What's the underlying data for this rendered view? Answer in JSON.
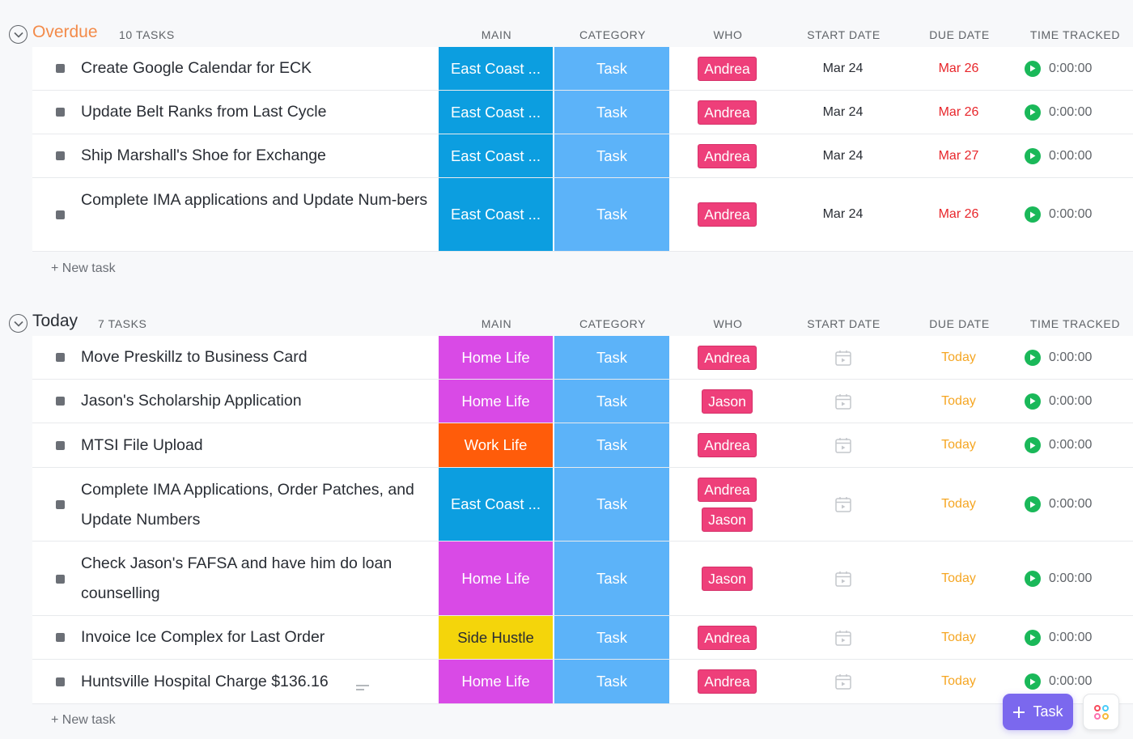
{
  "columns": {
    "main": "MAIN",
    "category": "CATEGORY",
    "who": "WHO",
    "start_date": "START DATE",
    "due_date": "DUE DATE",
    "time_tracked": "TIME TRACKED"
  },
  "colors": {
    "overdue_title": "#f38b4a",
    "overdue_due": "#e8262b",
    "today_due": "#f5a623",
    "east_coast": "#0c9ee0",
    "home_life": "#d94ae6",
    "work_life": "#ff5c0a",
    "side_hustle": "#f4d50b",
    "category_task": "#5cb3f9",
    "who_tag": "#ee3f7a",
    "timer_play": "#1ab859",
    "fab": "#7b68ee"
  },
  "groups": {
    "overdue": {
      "title": "Overdue",
      "count": "10 TASKS",
      "new_task": "+ New task",
      "tasks": [
        {
          "name": "Create Google Calendar for ECK",
          "main": "East Coast ...",
          "category": "Task",
          "who": [
            "Andrea"
          ],
          "start": "Mar 24",
          "due": "Mar 26",
          "time": "0:00:00"
        },
        {
          "name": "Update Belt Ranks from Last Cycle",
          "main": "East Coast ...",
          "category": "Task",
          "who": [
            "Andrea"
          ],
          "start": "Mar 24",
          "due": "Mar 26",
          "time": "0:00:00"
        },
        {
          "name": "Ship Marshall's Shoe for Exchange",
          "main": "East Coast ...",
          "category": "Task",
          "who": [
            "Andrea"
          ],
          "start": "Mar 24",
          "due": "Mar 27",
          "time": "0:00:00"
        },
        {
          "name": "Complete IMA applications and Update Num-bers",
          "main": "East Coast ...",
          "category": "Task",
          "who": [
            "Andrea"
          ],
          "start": "Mar 24",
          "due": "Mar 26",
          "time": "0:00:00"
        }
      ]
    },
    "today": {
      "title": "Today",
      "count": "7 TASKS",
      "new_task": "+ New task",
      "tasks": [
        {
          "name": "Move Preskillz to Business Card",
          "main": "Home Life",
          "category": "Task",
          "who": [
            "Andrea"
          ],
          "start": "",
          "due": "Today",
          "time": "0:00:00"
        },
        {
          "name": "Jason's Scholarship Application",
          "main": "Home Life",
          "category": "Task",
          "who": [
            "Jason"
          ],
          "start": "",
          "due": "Today",
          "time": "0:00:00"
        },
        {
          "name": "MTSI File Upload",
          "main": "Work Life",
          "category": "Task",
          "who": [
            "Andrea"
          ],
          "start": "",
          "due": "Today",
          "time": "0:00:00"
        },
        {
          "name": "Complete IMA Applications, Order Patches, and Update Numbers",
          "main": "East Coast ...",
          "category": "Task",
          "who": [
            "Andrea",
            "Jason"
          ],
          "start": "",
          "due": "Today",
          "time": "0:00:00"
        },
        {
          "name": "Check Jason's FAFSA and have him do loan counselling",
          "main": "Home Life",
          "category": "Task",
          "who": [
            "Jason"
          ],
          "start": "",
          "due": "Today",
          "time": "0:00:00"
        },
        {
          "name": "Invoice Ice Complex for Last Order",
          "main": "Side Hustle",
          "category": "Task",
          "who": [
            "Andrea"
          ],
          "start": "",
          "due": "Today",
          "time": "0:00:00"
        },
        {
          "name": "Huntsville Hospital Charge $136.16",
          "main": "Home Life",
          "category": "Task",
          "who": [
            "Andrea"
          ],
          "start": "",
          "due": "Today",
          "time": "0:00:00"
        }
      ]
    }
  },
  "fab": {
    "task_label": "Task",
    "task_icon": "plus-icon",
    "apps_icon": "apps-grid-icon"
  }
}
